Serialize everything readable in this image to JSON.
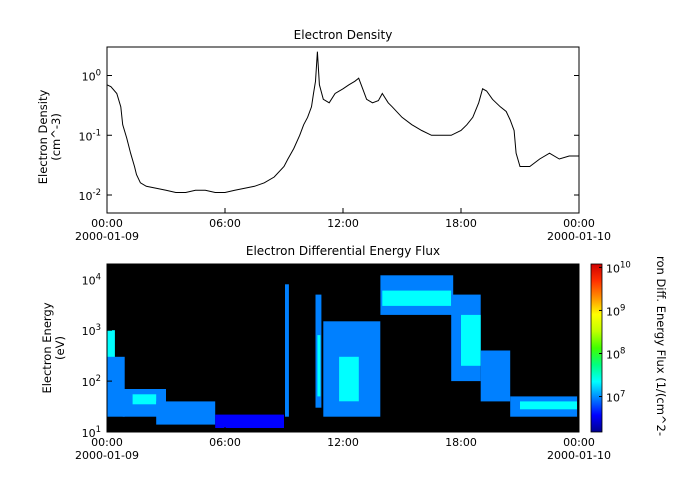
{
  "chart_data": [
    {
      "type": "line",
      "title": "Electron Density",
      "ylabel_line1": "Electron Density",
      "ylabel_line2": "(cm^-3)",
      "yscale": "log",
      "ylim": [
        0.005,
        3.0
      ],
      "yticks": [
        {
          "value": 0.01,
          "mantissa": "10",
          "exp": "-2"
        },
        {
          "value": 0.1,
          "mantissa": "10",
          "exp": "-1"
        },
        {
          "value": 1.0,
          "mantissa": "10",
          "exp": "0"
        }
      ],
      "xlim_hours": [
        0,
        24
      ],
      "xticks": [
        {
          "hour": 0,
          "label": "00:00",
          "date": "2000-01-09"
        },
        {
          "hour": 6,
          "label": "06:00",
          "date": ""
        },
        {
          "hour": 12,
          "label": "12:00",
          "date": ""
        },
        {
          "hour": 18,
          "label": "18:00",
          "date": ""
        },
        {
          "hour": 24,
          "label": "00:00",
          "date": "2000-01-10"
        }
      ],
      "line_color": "#000000",
      "series": [
        {
          "x_hours": [
            0.0,
            0.2,
            0.5,
            0.7,
            0.8,
            1.0,
            1.2,
            1.4,
            1.5,
            1.7,
            2.0,
            2.5,
            3.0,
            3.5,
            4.0,
            4.5,
            5.0,
            5.5,
            6.0,
            6.5,
            7.0,
            7.5,
            8.0,
            8.5,
            9.0,
            9.2,
            9.5,
            9.8,
            10.0,
            10.2,
            10.4,
            10.5,
            10.6,
            10.7,
            10.8,
            11.0,
            11.3,
            11.6,
            12.0,
            12.3,
            12.6,
            12.8,
            13.0,
            13.2,
            13.5,
            13.8,
            14.0,
            14.3,
            14.5,
            15.0,
            15.5,
            16.0,
            16.5,
            17.0,
            17.5,
            18.0,
            18.3,
            18.6,
            18.9,
            19.1,
            19.3,
            19.6,
            20.0,
            20.3,
            20.5,
            20.7,
            20.8,
            21.0,
            21.5,
            22.0,
            22.5,
            23.0,
            23.5,
            24.0
          ],
          "y": [
            0.7,
            0.65,
            0.5,
            0.3,
            0.15,
            0.09,
            0.05,
            0.03,
            0.022,
            0.016,
            0.014,
            0.013,
            0.012,
            0.011,
            0.011,
            0.012,
            0.012,
            0.011,
            0.011,
            0.012,
            0.013,
            0.014,
            0.016,
            0.02,
            0.03,
            0.04,
            0.06,
            0.1,
            0.15,
            0.2,
            0.3,
            0.5,
            0.8,
            2.5,
            0.7,
            0.4,
            0.35,
            0.5,
            0.6,
            0.7,
            0.8,
            0.9,
            0.6,
            0.4,
            0.35,
            0.38,
            0.5,
            0.35,
            0.3,
            0.2,
            0.15,
            0.12,
            0.1,
            0.1,
            0.1,
            0.12,
            0.15,
            0.2,
            0.35,
            0.6,
            0.55,
            0.4,
            0.3,
            0.25,
            0.18,
            0.12,
            0.05,
            0.03,
            0.03,
            0.04,
            0.05,
            0.04,
            0.045,
            0.045
          ]
        }
      ]
    },
    {
      "type": "heatmap",
      "title": "Electron Differential Energy Flux",
      "ylabel_line1": "Electron Energy",
      "ylabel_line2": "(eV)",
      "yscale": "log",
      "ylim": [
        10,
        20000
      ],
      "yticks": [
        {
          "value": 10,
          "mantissa": "10",
          "exp": "1"
        },
        {
          "value": 100,
          "mantissa": "10",
          "exp": "2"
        },
        {
          "value": 1000,
          "mantissa": "10",
          "exp": "3"
        },
        {
          "value": 10000,
          "mantissa": "10",
          "exp": "4"
        }
      ],
      "xlim_hours": [
        0,
        24
      ],
      "xticks": [
        {
          "hour": 0,
          "label": "00:00",
          "date": "2000-01-09"
        },
        {
          "hour": 6,
          "label": "06:00",
          "date": ""
        },
        {
          "hour": 12,
          "label": "12:00",
          "date": ""
        },
        {
          "hour": 18,
          "label": "18:00",
          "date": ""
        },
        {
          "hour": 24,
          "label": "00:00",
          "date": "2000-01-10"
        }
      ],
      "background": "#000000",
      "colorbar": {
        "label": "ron Diff. Energy Flux (1/(cm^2-",
        "scale": "log",
        "range": [
          1500000,
          12000000000
        ],
        "ticks": [
          {
            "value": 10000000,
            "mantissa": "10",
            "exp": "7"
          },
          {
            "value": 100000000,
            "mantissa": "10",
            "exp": "8"
          },
          {
            "value": 1000000000,
            "mantissa": "10",
            "exp": "9"
          },
          {
            "value": 10000000000,
            "mantissa": "10",
            "exp": "10"
          }
        ],
        "colors": [
          "#00008f",
          "#0000ff",
          "#0080ff",
          "#00ffff",
          "#00ff80",
          "#40ff00",
          "#c0ff00",
          "#ffff00",
          "#ff9000",
          "#ff3000",
          "#d00000"
        ]
      },
      "regions": [
        {
          "t0": 0.0,
          "t1": 0.4,
          "e0": 40,
          "e1": 1000,
          "log_flux": 7.3
        },
        {
          "t0": 0.0,
          "t1": 0.9,
          "e0": 20,
          "e1": 300,
          "log_flux": 7.0
        },
        {
          "t0": 0.8,
          "t1": 3.0,
          "e0": 20,
          "e1": 70,
          "log_flux": 7.0
        },
        {
          "t0": 1.3,
          "t1": 2.5,
          "e0": 35,
          "e1": 55,
          "log_flux": 7.3
        },
        {
          "t0": 2.5,
          "t1": 5.5,
          "e0": 14,
          "e1": 40,
          "log_flux": 6.9
        },
        {
          "t0": 5.5,
          "t1": 9.0,
          "e0": 12,
          "e1": 22,
          "log_flux": 6.6
        },
        {
          "t0": 9.05,
          "t1": 9.25,
          "e0": 20,
          "e1": 8000,
          "log_flux": 7.0
        },
        {
          "t0": 10.6,
          "t1": 10.9,
          "e0": 30,
          "e1": 5000,
          "log_flux": 7.0
        },
        {
          "t0": 10.7,
          "t1": 10.85,
          "e0": 50,
          "e1": 800,
          "log_flux": 7.4
        },
        {
          "t0": 11.0,
          "t1": 13.9,
          "e0": 20,
          "e1": 1500,
          "log_flux": 6.9
        },
        {
          "t0": 11.8,
          "t1": 12.8,
          "e0": 40,
          "e1": 300,
          "log_flux": 7.2
        },
        {
          "t0": 13.9,
          "t1": 17.6,
          "e0": 2000,
          "e1": 12000,
          "log_flux": 7.0
        },
        {
          "t0": 14.0,
          "t1": 17.5,
          "e0": 3000,
          "e1": 6000,
          "log_flux": 7.3
        },
        {
          "t0": 17.5,
          "t1": 19.0,
          "e0": 100,
          "e1": 5000,
          "log_flux": 7.0
        },
        {
          "t0": 18.0,
          "t1": 19.0,
          "e0": 200,
          "e1": 2000,
          "log_flux": 7.3
        },
        {
          "t0": 19.0,
          "t1": 20.5,
          "e0": 40,
          "e1": 400,
          "log_flux": 7.0
        },
        {
          "t0": 20.5,
          "t1": 23.9,
          "e0": 20,
          "e1": 50,
          "log_flux": 7.0
        },
        {
          "t0": 21.0,
          "t1": 23.9,
          "e0": 28,
          "e1": 40,
          "log_flux": 7.3
        }
      ]
    }
  ]
}
